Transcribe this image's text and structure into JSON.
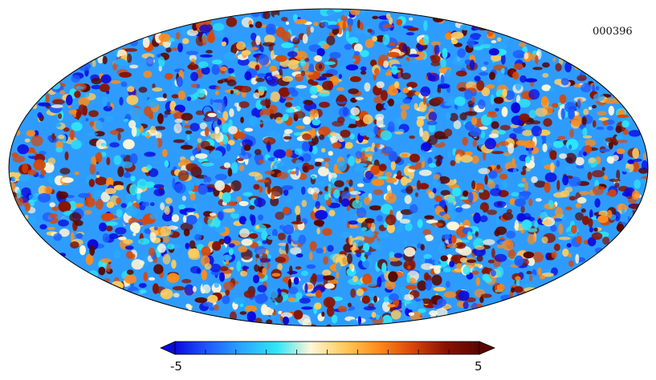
{
  "map": {
    "id_label": "000396",
    "projection": "mollweide"
  },
  "colorbar": {
    "min_label": "-5",
    "max_label": "5",
    "min_value": -5,
    "max_value": 5,
    "colors": [
      "#0a0adf",
      "#1e5cff",
      "#2aa8ff",
      "#2ee6f7",
      "#fff6d8",
      "#ffcb5c",
      "#ff8c1a",
      "#d94708",
      "#8a1200",
      "#5a0500"
    ]
  }
}
